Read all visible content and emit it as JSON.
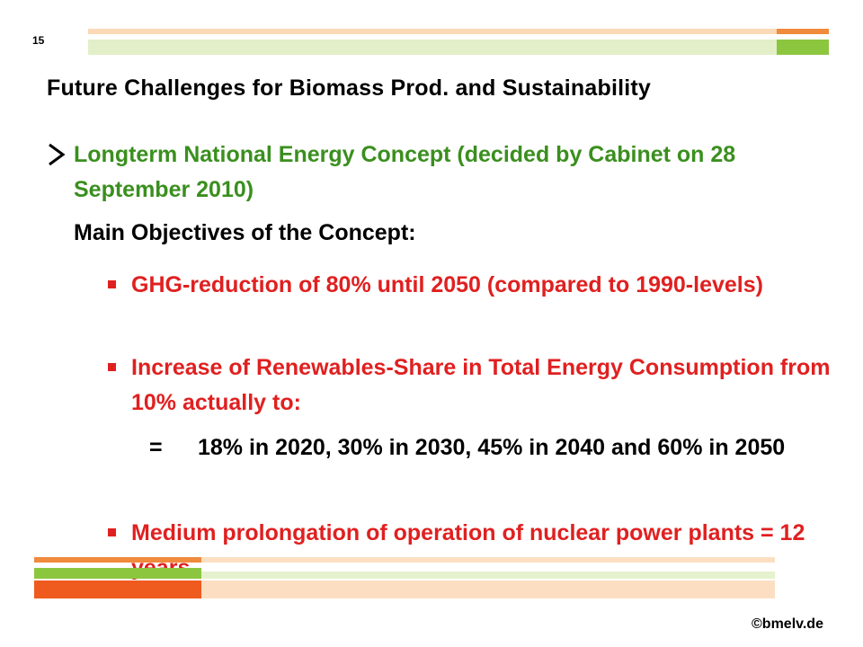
{
  "slide": {
    "page_number": "15",
    "title": "Future Challenges for Biomass Prod. and Sustainability",
    "main_bullet": "Longterm National Energy Concept (decided by Cabinet on 28 September 2010)",
    "subheading": "Main Objectives of the Concept:",
    "objectives": [
      "GHG-reduction of 80% until 2050 (compared to 1990-levels)",
      "Increase of Renewables-Share in Total Energy Consumption from 10% actually to:",
      "Medium prolongation of operation of nuclear power plants =  12 years"
    ],
    "targets_prefix": "=",
    "targets": "18% in 2020, 30% in 2030, 45% in 2040 and 60% in 2050",
    "logo": "©bmelv.de"
  },
  "colors": {
    "title": "#000000",
    "green_text": "#3a8f1e",
    "red_text": "#e02020",
    "stripe_peach": "#fbd9b7",
    "stripe_green": "#bfd98a",
    "stripe_light_green": "#e3efc8",
    "stripe_orange": "#f08a3c",
    "stripe_red": "#ef5a1e"
  }
}
